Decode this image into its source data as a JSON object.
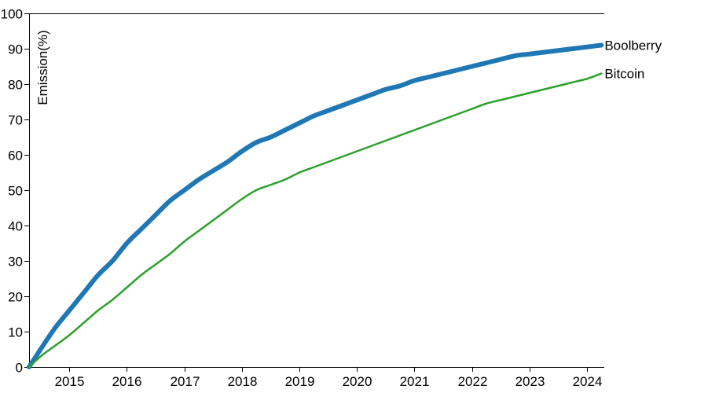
{
  "chart_data": {
    "type": "line",
    "title": "",
    "xlabel": "",
    "ylabel": "Emission(%)",
    "xlim": [
      2014.3,
      2024.3
    ],
    "ylim": [
      0,
      100
    ],
    "grid": false,
    "legend": "end-of-line labels",
    "x_ticks": [
      "2015",
      "2016",
      "2017",
      "2018",
      "2019",
      "2020",
      "2021",
      "2022",
      "2023",
      "2024"
    ],
    "y_ticks": [
      "0",
      "10",
      "20",
      "30",
      "40",
      "50",
      "60",
      "70",
      "80",
      "90",
      "100"
    ],
    "colors": {
      "boolberry": "#1f77b4",
      "bitcoin": "#2ca02c"
    },
    "x": [
      2014.3,
      2014.5,
      2014.75,
      2015,
      2015.25,
      2015.5,
      2015.75,
      2016,
      2016.25,
      2016.5,
      2016.75,
      2017,
      2017.25,
      2017.5,
      2017.75,
      2018,
      2018.25,
      2018.5,
      2018.75,
      2019,
      2019.25,
      2019.5,
      2019.75,
      2020,
      2020.25,
      2020.5,
      2020.75,
      2021,
      2021.25,
      2021.5,
      2021.75,
      2022,
      2022.25,
      2022.5,
      2022.75,
      2023,
      2023.25,
      2023.5,
      2023.75,
      2024,
      2024.25
    ],
    "series": [
      {
        "name": "Boolberry",
        "values": [
          0,
          5,
          11,
          16,
          21,
          26,
          30,
          35,
          39,
          43,
          47,
          50,
          53,
          55.5,
          58,
          61,
          63.5,
          65,
          67,
          69,
          71,
          72.5,
          74,
          75.5,
          77,
          78.5,
          79.5,
          81,
          82,
          83,
          84,
          85,
          86,
          87,
          88,
          88.5,
          89,
          89.5,
          90,
          90.5,
          91
        ]
      },
      {
        "name": "Bitcoin",
        "values": [
          0,
          3,
          6,
          9,
          12.5,
          16,
          19,
          22.5,
          26,
          29,
          32,
          35.5,
          38.5,
          41.5,
          44.5,
          47.5,
          50,
          51.5,
          53,
          55,
          56.5,
          58,
          59.5,
          61,
          62.5,
          64,
          65.5,
          67,
          68.5,
          70,
          71.5,
          73,
          74.5,
          75.5,
          76.5,
          77.5,
          78.5,
          79.5,
          80.5,
          81.5,
          83
        ]
      }
    ]
  }
}
